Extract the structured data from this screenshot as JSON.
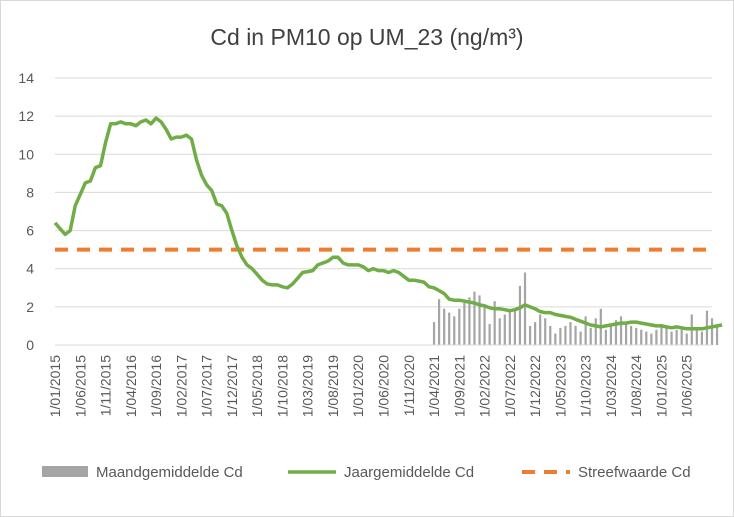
{
  "chart_data": {
    "type": "line",
    "title": "Cd in PM10 op UM_23 (ng/m³)",
    "xlabel": "",
    "ylabel": "",
    "ylim": [
      0,
      14
    ],
    "yticks": [
      0,
      2,
      4,
      6,
      8,
      10,
      12,
      14
    ],
    "grid": true,
    "legend_position": "bottom",
    "x_range": [
      "2015-01",
      "2025-11"
    ],
    "xticks": [
      "1/01/2015",
      "1/06/2015",
      "1/11/2015",
      "1/04/2016",
      "1/09/2016",
      "1/02/2017",
      "1/07/2017",
      "1/12/2017",
      "1/05/2018",
      "1/10/2018",
      "1/03/2019",
      "1/08/2019",
      "1/01/2020",
      "1/06/2020",
      "1/11/2020",
      "1/04/2021",
      "1/09/2021",
      "1/02/2022",
      "1/07/2022",
      "1/12/2022",
      "1/05/2023",
      "1/10/2023",
      "1/03/2024",
      "1/08/2024",
      "1/01/2025",
      "1/06/2025"
    ],
    "series": [
      {
        "name": "Maandgemiddelde Cd",
        "kind": "bar",
        "color": "#a5a5a5",
        "start_month_index": 75,
        "values": [
          1.2,
          2.4,
          1.9,
          1.7,
          1.5,
          1.9,
          2.2,
          2.5,
          2.8,
          2.6,
          2.0,
          1.1,
          2.3,
          1.4,
          1.6,
          1.8,
          1.9,
          3.1,
          3.8,
          1.0,
          1.2,
          1.6,
          1.4,
          1.0,
          0.6,
          0.9,
          1.0,
          1.2,
          1.0,
          0.7,
          1.5,
          0.9,
          1.4,
          1.9,
          0.8,
          1.0,
          1.3,
          1.5,
          1.1,
          1.0,
          0.9,
          0.8,
          0.7,
          0.6,
          0.8,
          1.1,
          0.9,
          0.7,
          0.8,
          0.9,
          0.6,
          1.6,
          0.8,
          0.7,
          1.8,
          1.4,
          1.0
        ]
      },
      {
        "name": "Jaargemiddelde Cd",
        "kind": "line",
        "color": "#70ad47",
        "start_month_index": 0,
        "values": [
          6.4,
          6.1,
          5.8,
          6.0,
          7.3,
          7.9,
          8.5,
          8.6,
          9.3,
          9.4,
          10.6,
          11.6,
          11.6,
          11.7,
          11.6,
          11.6,
          11.5,
          11.7,
          11.8,
          11.6,
          11.9,
          11.7,
          11.3,
          10.8,
          10.9,
          10.9,
          11.0,
          10.8,
          9.7,
          8.9,
          8.4,
          8.1,
          7.4,
          7.3,
          6.9,
          6.0,
          5.2,
          4.6,
          4.2,
          4.0,
          3.7,
          3.4,
          3.2,
          3.15,
          3.15,
          3.05,
          3.0,
          3.2,
          3.5,
          3.8,
          3.85,
          3.9,
          4.2,
          4.3,
          4.4,
          4.6,
          4.6,
          4.3,
          4.2,
          4.2,
          4.2,
          4.1,
          3.9,
          4.0,
          3.9,
          3.9,
          3.8,
          3.9,
          3.8,
          3.6,
          3.4,
          3.4,
          3.35,
          3.3,
          3.05,
          3.0,
          2.85,
          2.7,
          2.4,
          2.35,
          2.35,
          2.3,
          2.25,
          2.2,
          2.1,
          2.05,
          1.95,
          1.9,
          1.9,
          1.85,
          1.8,
          1.85,
          1.95,
          2.1,
          2.0,
          1.9,
          1.75,
          1.7,
          1.7,
          1.6,
          1.55,
          1.5,
          1.45,
          1.35,
          1.25,
          1.15,
          1.05,
          1.0,
          0.95,
          1.0,
          1.05,
          1.1,
          1.15,
          1.15,
          1.2,
          1.2,
          1.15,
          1.1,
          1.05,
          1.0,
          1.0,
          0.95,
          0.9,
          0.95,
          0.9,
          0.85,
          0.85,
          0.85,
          0.85,
          0.9,
          0.95,
          1.0,
          1.05
        ]
      },
      {
        "name": "Streefwaarde Cd",
        "kind": "dashed-line",
        "color": "#ed7d31",
        "constant": 5
      }
    ]
  }
}
